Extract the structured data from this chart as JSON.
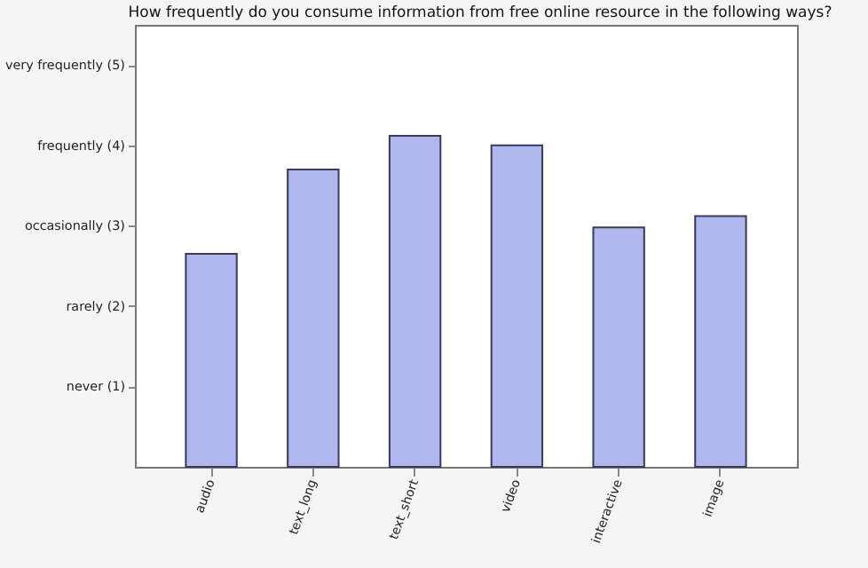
{
  "chart_data": {
    "type": "bar",
    "title": "How frequently do you consume information from free online resource in the following ways?",
    "categories": [
      "audio",
      "text_long",
      "text_short",
      "video",
      "interactive",
      "image"
    ],
    "values": [
      2.65,
      3.7,
      4.12,
      4.0,
      2.98,
      3.12
    ],
    "color": "#b0b7ee",
    "ylim": [
      0,
      5.5
    ],
    "yticks": [
      {
        "value": 1,
        "label": "never (1)"
      },
      {
        "value": 2,
        "label": "rarely (2)"
      },
      {
        "value": 3,
        "label": "occasionally (3)"
      },
      {
        "value": 4,
        "label": "frequently (4)"
      },
      {
        "value": 5,
        "label": "very frequently (5)"
      }
    ],
    "grid": false
  }
}
